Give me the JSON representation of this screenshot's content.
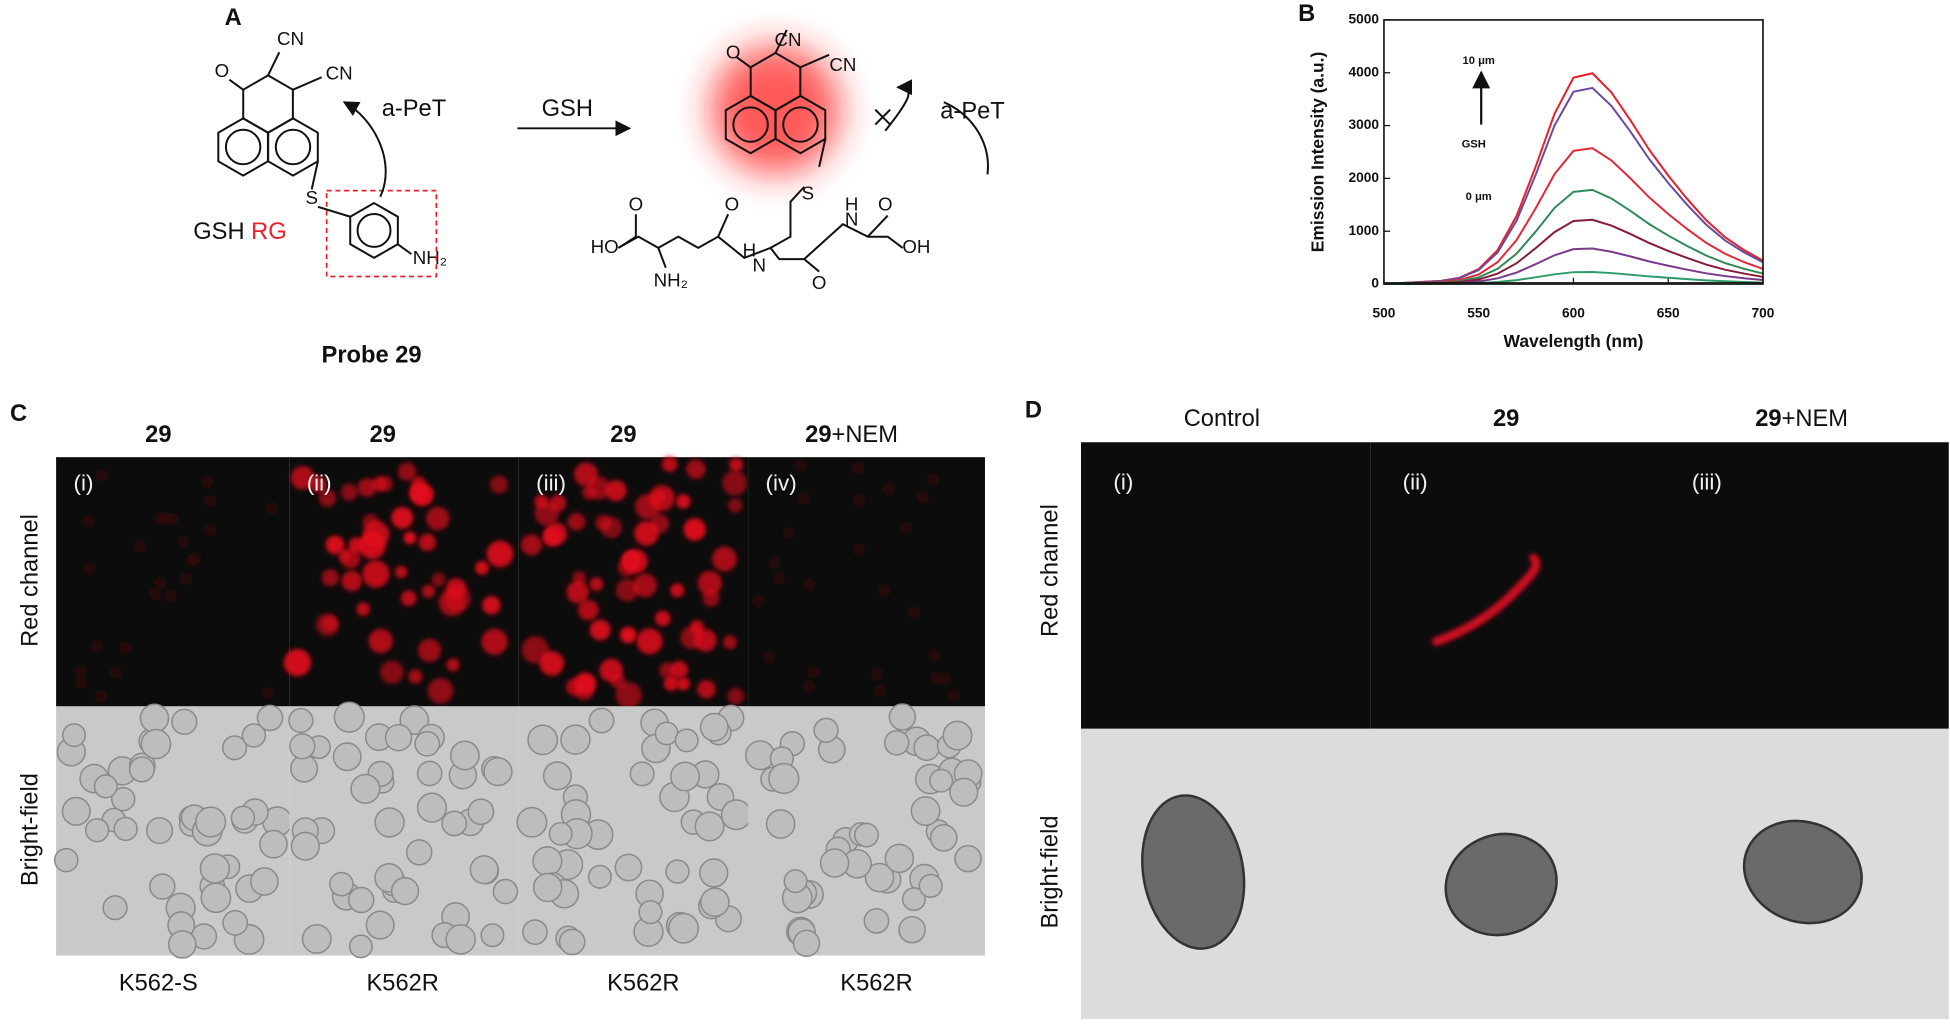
{
  "panel_a": {
    "label": "A",
    "probe_name": "Probe 29",
    "reagent": "GSH",
    "reactant": {
      "texts": [
        "O",
        "CN",
        "CN",
        "a-PeT",
        "S",
        "NH₂"
      ],
      "name": "GSH",
      "name_highlight": "RG"
    },
    "product": {
      "texts": [
        "O",
        "CN",
        "CN",
        "a-PeT",
        "S",
        "O",
        "HO",
        "NH₂",
        "N",
        "H",
        "O",
        "N",
        "H",
        "O",
        "OH"
      ]
    }
  },
  "chart_data": {
    "type": "line",
    "panel_label": "B",
    "xlabel": "Wavelength (nm)",
    "ylabel": "Emission Intensity (a.u.)",
    "annotations": [
      "10 μm",
      "GSH",
      "0 μm"
    ],
    "x": [
      500,
      510,
      520,
      530,
      540,
      550,
      560,
      570,
      580,
      590,
      600,
      610,
      620,
      630,
      640,
      650,
      660,
      670,
      680,
      690,
      700
    ],
    "series": [
      {
        "color": "#e8202a",
        "values": [
          0,
          20,
          40,
          60,
          121,
          282,
          645,
          1290,
          2217,
          3224,
          3909,
          3990,
          3627,
          3103,
          2539,
          2055,
          1612,
          1209,
          887,
          645,
          443
        ]
      },
      {
        "color": "#6a4a9c",
        "values": [
          0,
          19,
          38,
          56,
          113,
          263,
          600,
          1200,
          2063,
          3000,
          3638,
          3713,
          3375,
          2888,
          2363,
          1913,
          1500,
          1125,
          825,
          600,
          413
        ]
      },
      {
        "color": "#e02a3a",
        "values": [
          0,
          13,
          26,
          39,
          78,
          182,
          416,
          832,
          1430,
          2080,
          2522,
          2574,
          2340,
          2002,
          1638,
          1326,
          1040,
          780,
          572,
          416,
          286
        ]
      },
      {
        "color": "#2e8b57",
        "values": [
          0,
          9,
          18,
          27,
          54,
          126,
          288,
          576,
          990,
          1440,
          1746,
          1782,
          1620,
          1386,
          1134,
          918,
          720,
          540,
          396,
          288,
          198
        ]
      },
      {
        "color": "#8b1a3a",
        "values": [
          0,
          6,
          12,
          18,
          37,
          86,
          197,
          394,
          677,
          984,
          1193,
          1218,
          1107,
          947,
          775,
          627,
          492,
          369,
          271,
          197,
          135
        ]
      },
      {
        "color": "#7a3a8a",
        "values": [
          0,
          3,
          7,
          10,
          20,
          48,
          109,
          218,
          374,
          544,
          660,
          673,
          612,
          524,
          428,
          347,
          272,
          204,
          150,
          109,
          75
        ]
      },
      {
        "color": "#2e9b6a",
        "values": [
          0,
          1,
          2,
          3,
          7,
          16,
          37,
          74,
          127,
          184,
          223,
          228,
          207,
          177,
          145,
          117,
          92,
          69,
          51,
          37,
          25
        ]
      }
    ],
    "xlim": [
      500,
      700
    ],
    "ylim": [
      0,
      5000
    ],
    "xticks": [
      500,
      550,
      600,
      650,
      700
    ],
    "yticks": [
      0,
      1000,
      2000,
      3000,
      4000,
      5000
    ]
  },
  "panel_c": {
    "label": "C",
    "columns": [
      {
        "header": "29",
        "header_suffix": "",
        "index": "(i)",
        "cell_line": "K562-S"
      },
      {
        "header": "29",
        "header_suffix": "",
        "index": "(ii)",
        "cell_line": "K562R"
      },
      {
        "header": "29",
        "header_suffix": "",
        "index": "(iii)",
        "cell_line": "K562R"
      },
      {
        "header": "29",
        "header_suffix": "+NEM",
        "index": "(iv)",
        "cell_line": "K562R"
      }
    ],
    "rows": [
      "Red channel",
      "Bright-field"
    ]
  },
  "panel_d": {
    "label": "D",
    "columns": [
      {
        "header": "Control",
        "header_suffix": "",
        "index": "(i)"
      },
      {
        "header": "29",
        "header_suffix": "",
        "index": "(ii)"
      },
      {
        "header": "29",
        "header_suffix": "+NEM",
        "index": "(iii)"
      }
    ],
    "rows": [
      "Red channel",
      "Bright-field"
    ]
  }
}
